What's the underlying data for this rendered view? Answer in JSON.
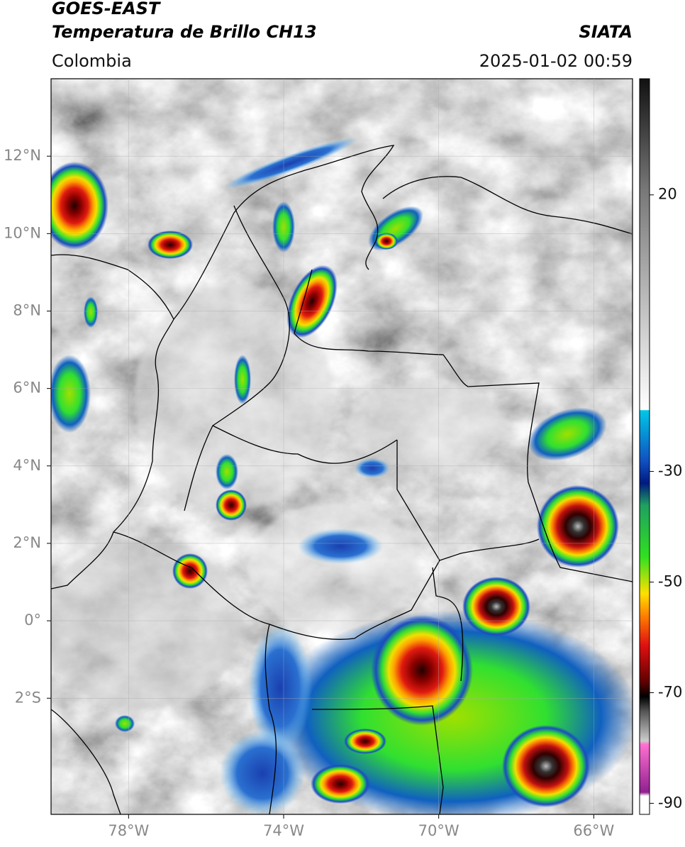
{
  "header": {
    "title": "GOES-EAST",
    "subtitle": "Temperatura de Brillo CH13",
    "source": "SIATA",
    "region": "Colombia",
    "datetime": "2025-01-02 00:59"
  },
  "map": {
    "xlim": [
      -80,
      -65
    ],
    "ylim": [
      -5,
      14
    ],
    "xticks": [
      {
        "value": -78,
        "label": "78°W"
      },
      {
        "value": -74,
        "label": "74°W"
      },
      {
        "value": -70,
        "label": "70°W"
      },
      {
        "value": -66,
        "label": "66°W"
      }
    ],
    "yticks": [
      {
        "value": 12,
        "label": "12°N"
      },
      {
        "value": 10,
        "label": "10°N"
      },
      {
        "value": 8,
        "label": "8°N"
      },
      {
        "value": 6,
        "label": "6°N"
      },
      {
        "value": 4,
        "label": "4°N"
      },
      {
        "value": 2,
        "label": "2°N"
      },
      {
        "value": 0,
        "label": "0°"
      },
      {
        "value": -2,
        "label": "2°S"
      }
    ]
  },
  "colorbar": {
    "lim": [
      -92,
      41
    ],
    "ticks": [
      20,
      -30,
      -50,
      -70,
      -90
    ]
  }
}
